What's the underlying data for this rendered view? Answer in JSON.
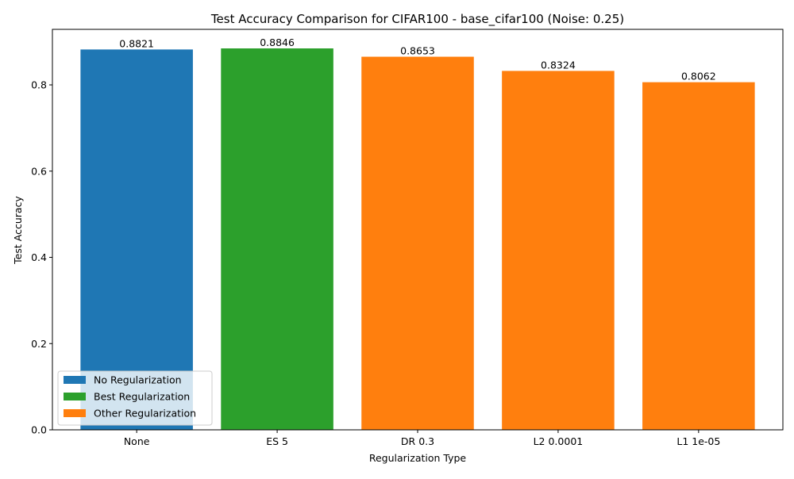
{
  "chart_data": {
    "type": "bar",
    "title": "Test Accuracy Comparison for CIFAR100 - base_cifar100 (Noise: 0.25)",
    "xlabel": "Regularization Type",
    "ylabel": "Test Accuracy",
    "categories": [
      "None",
      "ES 5",
      "DR 0.3",
      "L2 0.0001",
      "L1 1e-05"
    ],
    "values": [
      0.8821,
      0.8846,
      0.8653,
      0.8324,
      0.8062
    ],
    "value_labels": [
      "0.8821",
      "0.8846",
      "0.8653",
      "0.8324",
      "0.8062"
    ],
    "bar_groups": [
      "No Regularization",
      "Best Regularization",
      "Other Regularization",
      "Other Regularization",
      "Other Regularization"
    ],
    "ylim": [
      0,
      0.9288
    ],
    "yticks": [
      0.0,
      0.2,
      0.4,
      0.6,
      0.8
    ],
    "ytick_labels": [
      "0.0",
      "0.2",
      "0.4",
      "0.6",
      "0.8"
    ],
    "grid": false,
    "legend": {
      "placement": "lower-left",
      "entries": [
        {
          "label": "No Regularization",
          "color": "#1f77b4"
        },
        {
          "label": "Best Regularization",
          "color": "#2ca02c"
        },
        {
          "label": "Other Regularization",
          "color": "#ff7f0e"
        }
      ]
    }
  }
}
